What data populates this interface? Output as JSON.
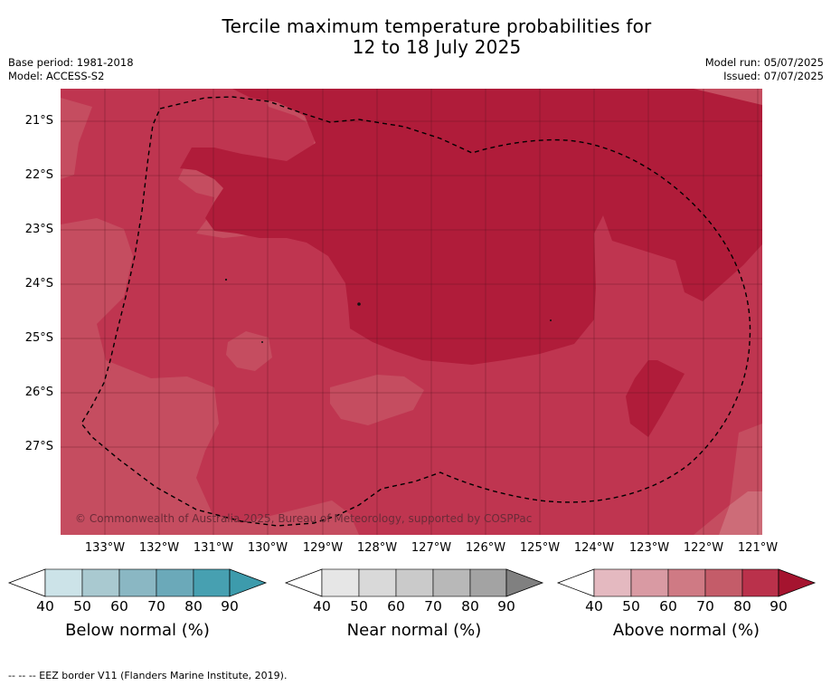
{
  "header": {
    "title_line1": "Tercile maximum temperature probabilities for",
    "title_line2": "12 to 18 July 2025",
    "base_period": "Base period: 1981-2018",
    "model": "Model: ACCESS-S2",
    "model_run": "Model run: 05/07/2025",
    "issued": "Issued: 07/07/2025"
  },
  "map": {
    "lat_labels": [
      "21°S",
      "22°S",
      "23°S",
      "24°S",
      "25°S",
      "26°S",
      "27°S"
    ],
    "lon_labels": [
      "133°W",
      "132°W",
      "131°W",
      "130°W",
      "129°W",
      "128°W",
      "127°W",
      "126°W",
      "125°W",
      "124°W",
      "123°W",
      "122°W",
      "121°W"
    ],
    "copyright": "© Commonwealth of Australia 2025, Bureau of Meteorology, supported by COSPPac",
    "colors": {
      "above_80_90": "#b01c3a",
      "above_70_80": "#bf3550",
      "above_60_70": "#c54d60",
      "above_50_60": "#cd6c78"
    }
  },
  "colorbars": {
    "below": {
      "title": "Below normal (%)",
      "ticks": [
        "40",
        "50",
        "60",
        "70",
        "80",
        "90"
      ],
      "colors": [
        "#cce3e8",
        "#a9c9d0",
        "#8ab7c3",
        "#6ba9b9",
        "#47a0b1",
        "#3d9bac"
      ]
    },
    "near": {
      "title": "Near normal (%)",
      "ticks": [
        "40",
        "50",
        "60",
        "70",
        "80",
        "90"
      ],
      "colors": [
        "#e6e6e6",
        "#d9d9d9",
        "#cacaca",
        "#b8b8b8",
        "#a3a3a3",
        "#808080"
      ]
    },
    "above": {
      "title": "Above normal (%)",
      "ticks": [
        "40",
        "50",
        "60",
        "70",
        "80",
        "90"
      ],
      "colors": [
        "#e4b9c0",
        "#d99aa3",
        "#cf7a84",
        "#c45c69",
        "#ba314b",
        "#a5142f"
      ]
    }
  },
  "footnote": "--  --  -- EEZ border V11 (Flanders Marine Institute, 2019)."
}
